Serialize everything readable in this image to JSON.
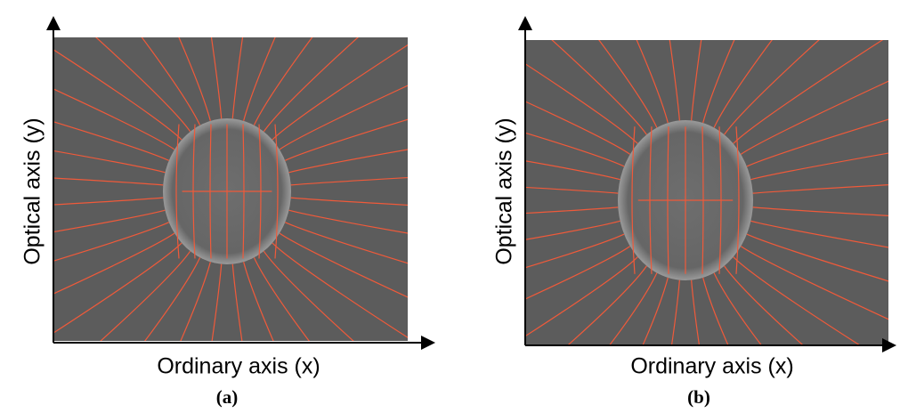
{
  "panels": [
    {
      "y_label": "Optical axis (y)",
      "x_label": "Ordinary axis (x)",
      "caption": "(a)"
    },
    {
      "y_label": "Optical axis (y)",
      "x_label": "Ordinary axis (x)",
      "caption": "(b)"
    }
  ]
}
